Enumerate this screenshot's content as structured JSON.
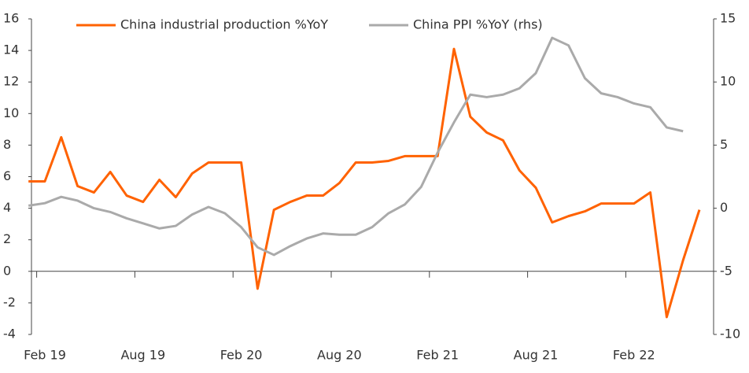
{
  "chart_data": {
    "type": "line",
    "categories": [
      null,
      "Feb 19",
      null,
      null,
      null,
      null,
      null,
      "Aug 19",
      null,
      null,
      null,
      null,
      null,
      "Feb 20",
      null,
      null,
      null,
      null,
      null,
      "Aug 20",
      null,
      null,
      null,
      null,
      null,
      "Feb 21",
      null,
      null,
      null,
      null,
      null,
      "Aug 21",
      null,
      null,
      null,
      null,
      null,
      "Feb 22",
      null,
      null,
      null,
      null
    ],
    "series": [
      {
        "name": "China industrial production %YoY",
        "color": "#ff6200",
        "axis": "y",
        "values": [
          5.7,
          5.7,
          8.5,
          5.4,
          5.0,
          6.3,
          4.8,
          4.4,
          5.8,
          4.7,
          6.2,
          6.9,
          6.9,
          6.9,
          -1.1,
          3.9,
          4.4,
          4.8,
          4.8,
          5.6,
          6.9,
          6.9,
          7.0,
          7.3,
          7.3,
          7.3,
          14.1,
          9.8,
          8.8,
          8.3,
          6.4,
          5.3,
          3.1,
          3.5,
          3.8,
          4.3,
          4.3,
          4.3,
          5.0,
          -2.9,
          0.7,
          3.9
        ]
      },
      {
        "name": "China PPI %YoY (rhs)",
        "color": "#aaaaaa",
        "axis": "y2",
        "values": [
          0.2,
          0.4,
          0.9,
          0.6,
          0,
          -0.3,
          -0.8,
          -1.2,
          -1.6,
          -1.4,
          -0.5,
          0.1,
          -0.4,
          -1.5,
          -3.1,
          -3.7,
          -3.0,
          -2.4,
          -2.0,
          -2.1,
          -2.1,
          -1.5,
          -0.4,
          0.3,
          1.7,
          4.4,
          6.8,
          9.0,
          8.8,
          9.0,
          9.5,
          10.7,
          13.5,
          12.9,
          10.3,
          9.1,
          8.8,
          8.3,
          8.0,
          6.4,
          6.1,
          null
        ]
      }
    ],
    "ylim": [
      -4,
      16
    ],
    "yticks": [
      -4,
      -2,
      0,
      2,
      4,
      6,
      8,
      10,
      12,
      14,
      16
    ],
    "y2lim": [
      -10,
      15
    ],
    "y2ticks": [
      -10,
      -5,
      0,
      5,
      10,
      15
    ],
    "grid": false,
    "legend": "top"
  }
}
